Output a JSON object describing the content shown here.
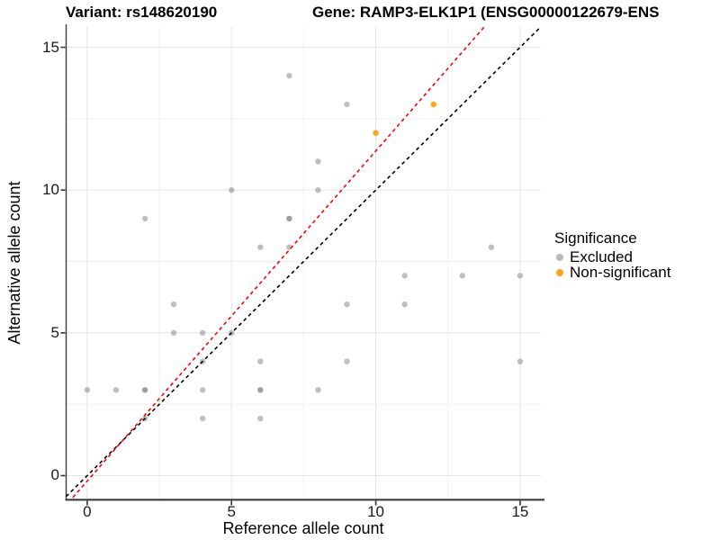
{
  "chart_data": {
    "type": "scatter",
    "title": "Variant: rs148620190",
    "title2": "Gene: RAMP3-ELK1P1 (ENSG00000122679-ENS",
    "xlabel": "Reference allele count",
    "ylabel": "Alternative allele count",
    "xlim": [
      -0.73,
      15.72
    ],
    "ylim": [
      -0.82,
      15.71
    ],
    "x_ticks": [
      0,
      5,
      10,
      15
    ],
    "y_ticks": [
      0,
      5,
      10,
      15
    ],
    "minor_grid": [
      2.5,
      7.5,
      12.5
    ],
    "grid": "on",
    "colors": {
      "excluded_point": "#7f7f7f",
      "excluded_legend": "#b9b9b9",
      "non_significant": "#FFA318",
      "identity_line": "#000000",
      "fit_line": "#FF0000",
      "major_grid": "#e4e4e4",
      "minor_grid_color": "#f0f0f0",
      "axis_line": "#3c3c3c"
    },
    "series": [
      {
        "name": "Excluded",
        "marker_opacity": 0.5,
        "points": [
          [
            0,
            3
          ],
          [
            1,
            3
          ],
          [
            2,
            2
          ],
          [
            2,
            3
          ],
          [
            2,
            3
          ],
          [
            2,
            9
          ],
          [
            3,
            5
          ],
          [
            3,
            6
          ],
          [
            4,
            2
          ],
          [
            4,
            3
          ],
          [
            4,
            4
          ],
          [
            4,
            5
          ],
          [
            5,
            5
          ],
          [
            5,
            10
          ],
          [
            6,
            2
          ],
          [
            6,
            3
          ],
          [
            6,
            3
          ],
          [
            6,
            4
          ],
          [
            6,
            8
          ],
          [
            7,
            8
          ],
          [
            7,
            9
          ],
          [
            7,
            9
          ],
          [
            7,
            14
          ],
          [
            8,
            3
          ],
          [
            8,
            10
          ],
          [
            8,
            11
          ],
          [
            9,
            4
          ],
          [
            9,
            6
          ],
          [
            9,
            13
          ],
          [
            11,
            6
          ],
          [
            11,
            7
          ],
          [
            13,
            7
          ],
          [
            14,
            8
          ],
          [
            15,
            4
          ],
          [
            15,
            7
          ]
        ]
      },
      {
        "name": "Non-significant",
        "marker_opacity": 1,
        "points": [
          [
            10,
            12
          ],
          [
            12,
            13
          ]
        ]
      }
    ],
    "lines": [
      {
        "name": "identity",
        "slope": 1,
        "intercept": 0,
        "style": "dashed"
      },
      {
        "name": "fit",
        "slope": 1.156,
        "intercept": -0.19,
        "style": "dashed"
      }
    ],
    "legend": {
      "title": "Significance",
      "position": "right",
      "entries": [
        {
          "label": "Excluded"
        },
        {
          "label": "Non-significant"
        }
      ]
    }
  }
}
